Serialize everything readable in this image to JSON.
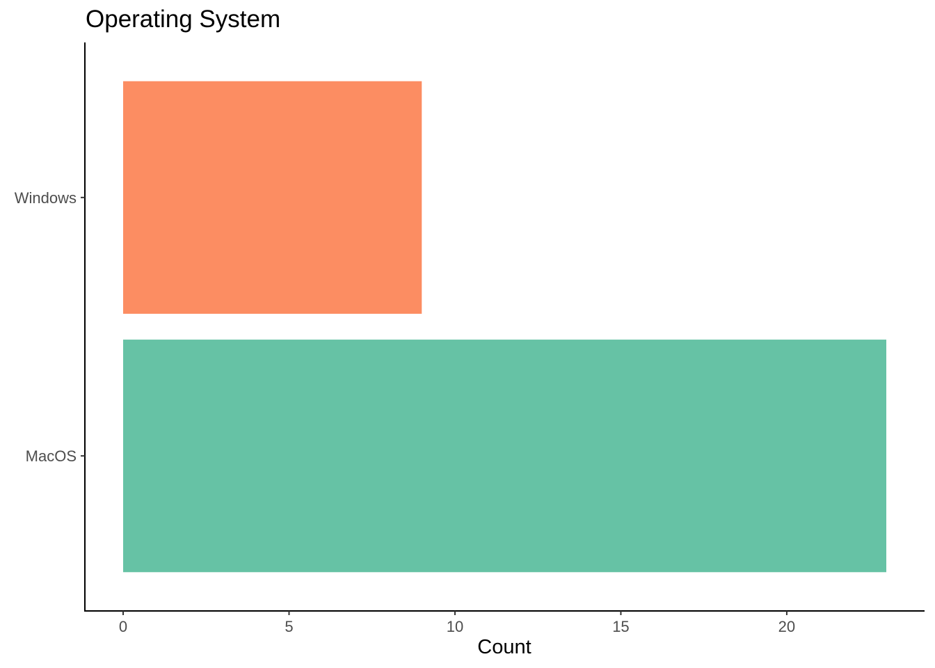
{
  "chart_data": {
    "type": "bar",
    "orientation": "horizontal",
    "title": "Operating System",
    "xlabel": "Count",
    "ylabel": "",
    "categories": [
      "MacOS",
      "Windows"
    ],
    "values": [
      23,
      9
    ],
    "colors": [
      "#66c2a5",
      "#fc8d62"
    ],
    "xlim": [
      0,
      23
    ],
    "xticks": [
      0,
      5,
      10,
      15,
      20
    ],
    "grid": false,
    "legend": "none"
  }
}
